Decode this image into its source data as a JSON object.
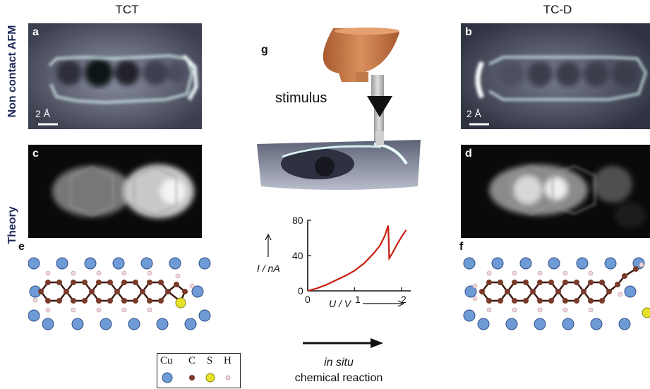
{
  "columns": {
    "left": "TCT",
    "right": "TC-D"
  },
  "rows": {
    "top": "Non contact AFM",
    "bottom": "Theory"
  },
  "panels": {
    "a": "a",
    "b": "b",
    "c": "c",
    "d": "d",
    "e": "e",
    "f": "f",
    "g": "g"
  },
  "scale_bar": "2 Å",
  "stimulus": "stimulus",
  "reaction": {
    "line1": "in situ",
    "line2": "chemical reaction"
  },
  "legend": {
    "items": [
      "Cu",
      "C",
      "S",
      "H"
    ]
  },
  "colors": {
    "cu": "#6e9ad6",
    "c": "#7a3a2a",
    "s": "#e6e22a",
    "h": "#f0d8dc",
    "curve": "#c81e10",
    "tip": "#c8784a"
  },
  "chart_data": {
    "type": "line",
    "xlabel": "U / V",
    "ylabel": "I / nA",
    "x_ticks": [
      "0",
      "1",
      "2"
    ],
    "y_ticks": [
      "0",
      "40",
      "80"
    ],
    "xlim": [
      0,
      2.2
    ],
    "ylim": [
      0,
      80
    ],
    "series": [
      {
        "x": [
          0,
          0.2,
          0.4,
          0.6,
          0.8,
          1.0,
          1.2,
          1.4,
          1.55,
          1.65,
          1.72,
          1.74,
          1.8,
          1.9,
          2.0,
          2.1
        ],
        "y": [
          0,
          3,
          7,
          12,
          17,
          23,
          31,
          42,
          52,
          63,
          74,
          37,
          42,
          52,
          61,
          69
        ]
      }
    ]
  }
}
